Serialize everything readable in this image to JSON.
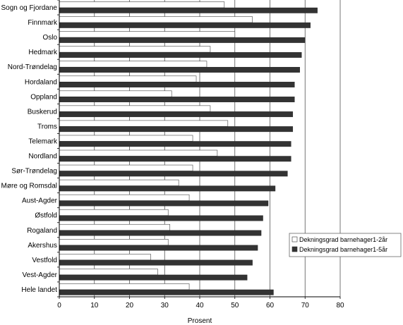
{
  "chart_data": {
    "type": "bar",
    "orientation": "horizontal",
    "categories": [
      "Sogn og Fjordane",
      "Finnmark",
      "Oslo",
      "Hedmark",
      "Nord-Trøndelag",
      "Hordaland",
      "Oppland",
      "Buskerud",
      "Troms",
      "Telemark",
      "Nordland",
      "Sør-Trøndelag",
      "Møre og Romsdal",
      "Aust-Agder",
      "Østfold",
      "Rogaland",
      "Akershus",
      "Vestfold",
      "Vest-Agder",
      "Hele landet"
    ],
    "series": [
      {
        "name": "Dekningsgrad barnehager1-2år",
        "color": "#ffffff",
        "values": [
          47,
          55,
          50,
          43,
          42,
          39,
          32,
          43,
          48,
          38,
          45,
          38,
          34,
          37,
          31,
          31.5,
          31,
          26,
          28,
          37
        ]
      },
      {
        "name": "Dekningsgrad barnehager1-5år",
        "color": "#333333",
        "values": [
          73.5,
          71.5,
          70,
          69,
          68.5,
          67,
          67,
          66.5,
          66.5,
          66,
          66,
          65,
          61.5,
          59.5,
          58,
          57.5,
          56.5,
          55,
          53.5,
          61
        ]
      }
    ],
    "xlabel": "Prosent",
    "xlim": [
      0,
      80
    ],
    "xticks": [
      0,
      10,
      20,
      30,
      40,
      50,
      60,
      70,
      80
    ],
    "grid": "vertical",
    "legend_position": "right"
  }
}
